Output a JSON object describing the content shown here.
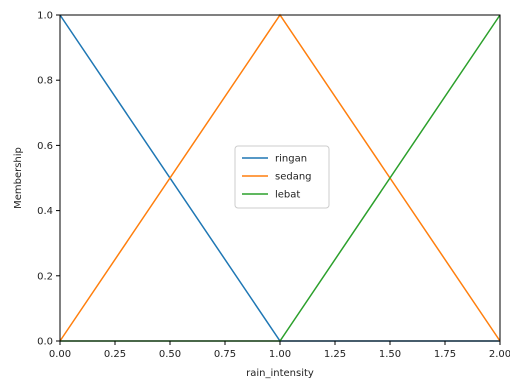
{
  "chart_data": {
    "type": "line",
    "title": "",
    "xlabel": "rain_intensity",
    "ylabel": "Membership",
    "xlim": [
      0,
      2
    ],
    "ylim": [
      0,
      1
    ],
    "x_ticks": [
      0,
      0.25,
      0.5,
      0.75,
      1,
      1.25,
      1.5,
      1.75,
      2
    ],
    "x_tick_labels": [
      "0.00",
      "0.25",
      "0.50",
      "0.75",
      "1.00",
      "1.25",
      "1.50",
      "1.75",
      "2.00"
    ],
    "y_ticks": [
      0,
      0.2,
      0.4,
      0.6,
      0.8,
      1
    ],
    "y_tick_labels": [
      "0.0",
      "0.2",
      "0.4",
      "0.6",
      "0.8",
      "1.0"
    ],
    "grid": false,
    "legend_position": "center",
    "series": [
      {
        "name": "ringan",
        "color": "#1f77b4",
        "x": [
          0,
          1,
          2
        ],
        "y": [
          1,
          0,
          0
        ]
      },
      {
        "name": "sedang",
        "color": "#ff7f0e",
        "x": [
          0,
          1,
          2
        ],
        "y": [
          0,
          1,
          0
        ]
      },
      {
        "name": "lebat",
        "color": "#2ca02c",
        "x": [
          0,
          1,
          2
        ],
        "y": [
          0,
          0,
          1
        ]
      }
    ]
  }
}
